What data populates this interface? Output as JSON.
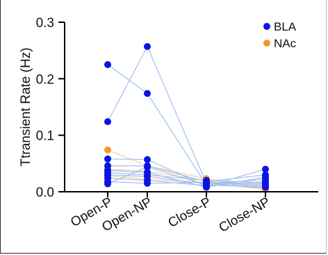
{
  "chart_data": {
    "type": "scatter",
    "subtype": "paired-dot-plot",
    "title": "",
    "xlabel": "",
    "ylabel": "Ttransient Rate (Hz)",
    "categories": [
      "Open-P",
      "Open-NP",
      "Close-P",
      "Close-NP"
    ],
    "ylim": [
      0,
      0.3
    ],
    "yticks": [
      "0.0",
      "0.1",
      "0.2",
      "0.3"
    ],
    "grid": false,
    "legend_position": "top-right",
    "series": [
      {
        "name": "BLA",
        "color": "#0a14e6",
        "line_color": "#9fbfef",
        "subjects": [
          [
            0.225,
            0.174,
            0.012,
            0.01
          ],
          [
            0.124,
            0.257,
            0.015,
            0.012
          ],
          [
            0.058,
            0.057,
            0.01,
            0.04
          ],
          [
            0.046,
            0.046,
            0.018,
            0.03
          ],
          [
            0.038,
            0.034,
            0.008,
            0.026
          ],
          [
            0.03,
            0.027,
            0.014,
            0.022
          ],
          [
            0.024,
            0.02,
            0.011,
            0.018
          ],
          [
            0.018,
            0.015,
            0.017,
            0.014
          ],
          [
            0.014,
            0.044,
            0.012,
            0.008
          ],
          [
            0.034,
            0.03,
            0.02,
            0.016
          ]
        ]
      },
      {
        "name": "NAc",
        "color": "#f7952e",
        "line_color": "#f9c99a",
        "subjects": [
          [
            0.074,
            0.046,
            0.023,
            0.006
          ],
          [
            0.04,
            0.036,
            0.019,
            0.005
          ],
          [
            0.028,
            0.022,
            0.016,
            0.004
          ]
        ]
      }
    ]
  }
}
